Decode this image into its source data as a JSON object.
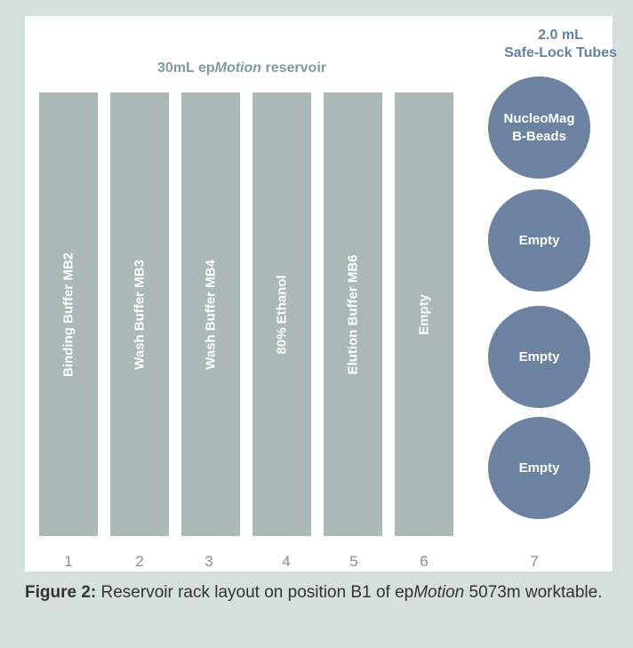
{
  "header": {
    "reservoir_prefix": "30mL ep",
    "reservoir_brand": "Motion",
    "reservoir_suffix": " reservoir",
    "tubes_line1": "2.0 mL",
    "tubes_line2": "Safe-Lock Tubes"
  },
  "reservoirs": [
    {
      "label": "Binding Buffer MB2",
      "number": "1"
    },
    {
      "label": "Wash Buffer MB3",
      "number": "2"
    },
    {
      "label": "Wash Buffer MB4",
      "number": "3"
    },
    {
      "label": "80% Ethanol",
      "number": "4"
    },
    {
      "label": "Elution Buffer MB6",
      "number": "5"
    },
    {
      "label": "Empty",
      "number": "6"
    }
  ],
  "tubes": [
    {
      "label": "NucleoMag\nB-Beads"
    },
    {
      "label": "Empty"
    },
    {
      "label": "Empty"
    },
    {
      "label": "Empty"
    }
  ],
  "tube_column_number": "7",
  "caption": {
    "label": "Figure 2:",
    "text_1": " Reservoir rack layout on position B1 of ep",
    "brand": "Motion",
    "text_2": " 5073m worktable."
  },
  "colors": {
    "background": "#d5dfdc",
    "reservoir": "#abb9b6",
    "tube": "#6b83a1",
    "reservoir_header": "#7c9b9a",
    "tube_header": "#5f83a6"
  }
}
